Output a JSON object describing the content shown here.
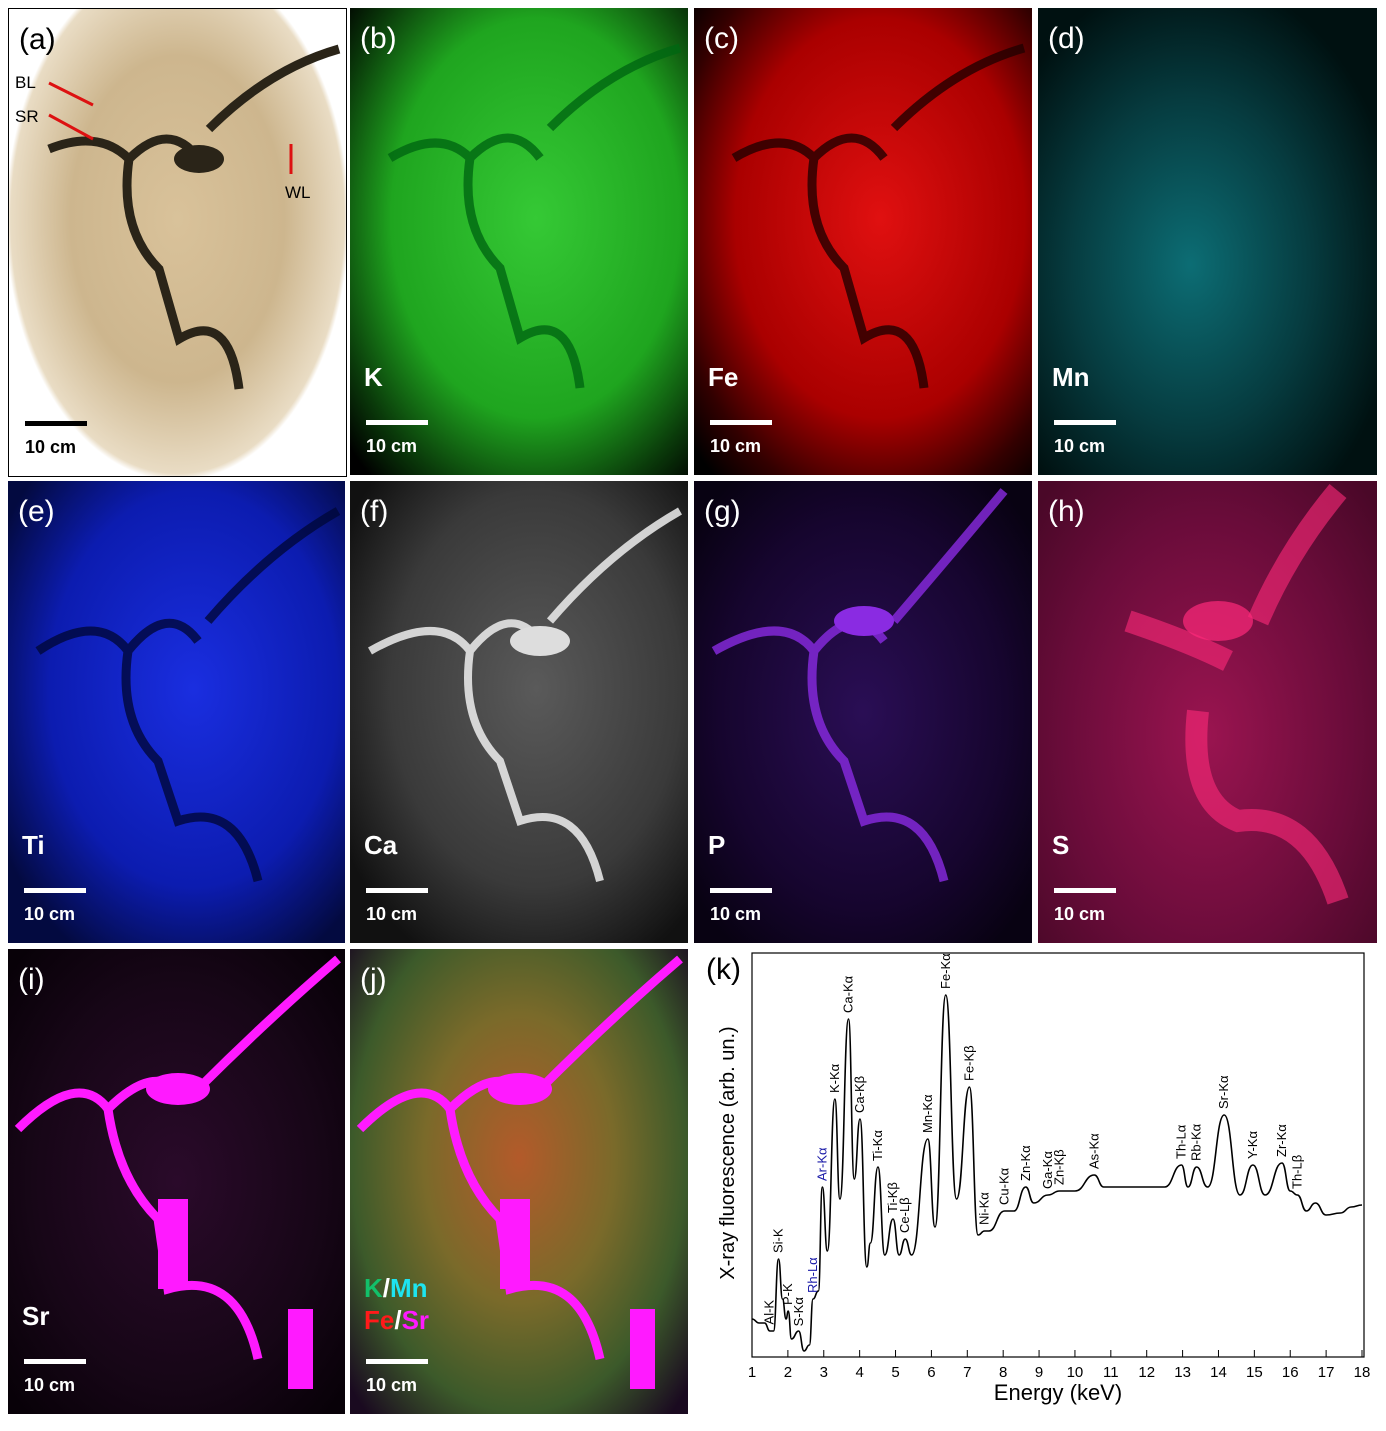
{
  "panels": [
    {
      "label": "(a)",
      "scale": "10 cm",
      "arrows": [
        "BL",
        "SR",
        "WL"
      ]
    },
    {
      "label": "(b)",
      "element": "K",
      "scale": "10 cm"
    },
    {
      "label": "(c)",
      "element": "Fe",
      "scale": "10 cm"
    },
    {
      "label": "(d)",
      "element": "Mn",
      "scale": "10 cm"
    },
    {
      "label": "(e)",
      "element": "Ti",
      "scale": "10 cm"
    },
    {
      "label": "(f)",
      "element": "Ca",
      "scale": "10 cm"
    },
    {
      "label": "(g)",
      "element": "P",
      "scale": "10 cm"
    },
    {
      "label": "(h)",
      "element": "S",
      "scale": "10 cm"
    },
    {
      "label": "(i)",
      "element": "Sr",
      "scale": "10 cm"
    },
    {
      "label": "(j)",
      "legend": [
        [
          "K",
          "/",
          "Mn"
        ],
        [
          "Fe",
          "/",
          "Sr"
        ]
      ],
      "scale": "10 cm"
    }
  ],
  "chart_data": {
    "type": "line",
    "panel_label": "(k)",
    "x_label": "Energy (keV)",
    "y_label": "X-ray fluorescence (arb. un.)",
    "color": "#000000",
    "xlim": [
      1,
      18
    ],
    "xticks": [
      1,
      2,
      3,
      4,
      5,
      6,
      7,
      8,
      9,
      10,
      11,
      12,
      13,
      14,
      15,
      16,
      17,
      18
    ],
    "ylim": [
      0,
      100
    ],
    "x": [
      1.0,
      1.2,
      1.35,
      1.5,
      1.6,
      1.74,
      1.85,
      1.95,
      2.01,
      2.1,
      2.3,
      2.45,
      2.6,
      2.7,
      2.85,
      2.96,
      3.1,
      3.31,
      3.45,
      3.69,
      3.85,
      4.01,
      4.2,
      4.3,
      4.51,
      4.7,
      4.93,
      5.1,
      5.27,
      5.45,
      5.9,
      6.1,
      6.4,
      6.7,
      7.06,
      7.3,
      7.48,
      7.6,
      8.04,
      8.3,
      8.63,
      8.85,
      9.25,
      9.57,
      10.0,
      10.54,
      10.8,
      11.5,
      12.5,
      12.97,
      13.15,
      13.39,
      13.7,
      14.16,
      14.6,
      14.96,
      15.3,
      15.77,
      16.0,
      16.2,
      16.45,
      16.7,
      17.0,
      17.4,
      17.7,
      18.0
    ],
    "values": [
      9,
      8,
      8,
      6,
      6,
      24,
      14,
      9,
      11,
      4,
      6,
      1,
      2.5,
      14,
      16,
      42,
      26,
      64,
      39,
      84,
      44,
      59,
      22,
      28,
      47,
      25,
      34,
      25,
      29,
      25,
      54,
      32,
      90,
      39,
      67,
      30,
      31,
      31,
      36,
      36,
      42,
      38,
      40,
      41,
      41,
      45,
      42,
      42,
      42,
      47.5,
      42,
      47,
      42,
      60,
      40,
      47.5,
      40,
      48,
      41,
      40,
      36,
      38,
      35,
      35.5,
      37,
      37.5
    ],
    "annotations": [
      {
        "text": "Al-K",
        "x": 1.49,
        "color": "#000000"
      },
      {
        "text": "Si-K",
        "x": 1.74,
        "color": "#000000"
      },
      {
        "text": "P-K",
        "x": 2.01,
        "color": "#000000"
      },
      {
        "text": "S-Kα",
        "x": 2.31,
        "color": "#000000"
      },
      {
        "text": "Rh-Lα",
        "x": 2.7,
        "color": "#1a1aa8"
      },
      {
        "text": "Ar-Kα",
        "x": 2.96,
        "color": "#1a1aa8"
      },
      {
        "text": "K-Kα",
        "x": 3.31,
        "color": "#000000"
      },
      {
        "text": "Ca-Kα",
        "x": 3.69,
        "color": "#000000"
      },
      {
        "text": "Ca-Kβ",
        "x": 4.01,
        "color": "#000000"
      },
      {
        "text": "Ti-Kα",
        "x": 4.51,
        "color": "#000000"
      },
      {
        "text": "Ti-Kβ",
        "x": 4.93,
        "color": "#000000"
      },
      {
        "text": "Ce-Lβ",
        "x": 5.27,
        "color": "#000000"
      },
      {
        "text": "Mn-Kα",
        "x": 5.9,
        "color": "#000000"
      },
      {
        "text": "Fe-Kα",
        "x": 6.4,
        "color": "#000000"
      },
      {
        "text": "Fe-Kβ",
        "x": 7.06,
        "color": "#000000"
      },
      {
        "text": "Ni-Kα",
        "x": 7.48,
        "color": "#000000"
      },
      {
        "text": "Cu-Kα",
        "x": 8.04,
        "color": "#000000"
      },
      {
        "text": "Zn-Kα",
        "x": 8.63,
        "color": "#000000"
      },
      {
        "text": "Ga-Kα",
        "x": 9.25,
        "color": "#000000"
      },
      {
        "text": "Zn-Kβ",
        "x": 9.57,
        "color": "#000000"
      },
      {
        "text": "As-Kα",
        "x": 10.54,
        "color": "#000000"
      },
      {
        "text": "Th-Lα",
        "x": 12.97,
        "color": "#000000"
      },
      {
        "text": "Rb-Kα",
        "x": 13.39,
        "color": "#000000"
      },
      {
        "text": "Sr-Kα",
        "x": 14.16,
        "color": "#000000"
      },
      {
        "text": "Y-Kα",
        "x": 14.96,
        "color": "#000000"
      },
      {
        "text": "Zr-Kα",
        "x": 15.77,
        "color": "#000000"
      },
      {
        "text": "Th-Lβ",
        "x": 16.2,
        "color": "#000000"
      }
    ]
  }
}
